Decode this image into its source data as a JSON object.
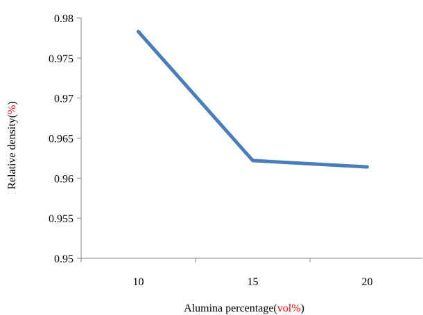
{
  "chart_data": {
    "type": "line",
    "title": "",
    "x": [
      10,
      15,
      20
    ],
    "x_tick_labels": [
      "10",
      "15",
      "20"
    ],
    "xlim": [
      7.5,
      22.5
    ],
    "ylim": [
      0.95,
      0.98
    ],
    "y_ticks": [
      0.95,
      0.955,
      0.96,
      0.965,
      0.97,
      0.975,
      0.98
    ],
    "y_tick_labels": [
      "0.95",
      "0.955",
      "0.96",
      "0.965",
      "0.97",
      "0.975",
      "0.98"
    ],
    "series": [
      {
        "values": [
          0.9783,
          0.9622,
          0.9614
        ]
      }
    ],
    "xlabel": {
      "text": "Alumina percentage(",
      "unit": "vol%",
      "close": ")"
    },
    "ylabel": {
      "text": "Relative density(",
      "unit": "%",
      "close": ")"
    },
    "grid": false,
    "legend": "none",
    "line_color": "#4A7EBB",
    "unit_color": "#FF0000"
  }
}
